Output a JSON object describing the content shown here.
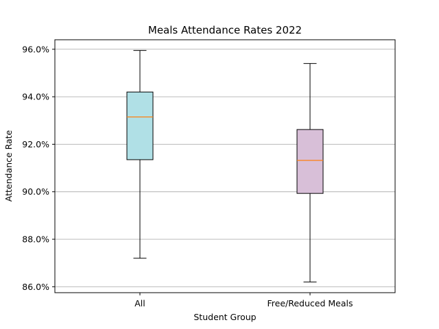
{
  "chart_data": {
    "type": "box",
    "title": "Meals Attendance Rates 2022",
    "xlabel": "Student Group",
    "ylabel": "Attendance Rate",
    "ylim": [
      85.75,
      96.4
    ],
    "yticks": [
      86,
      88,
      90,
      92,
      94,
      96
    ],
    "ytick_labels": [
      "86.0%",
      "88.0%",
      "90.0%",
      "92.0%",
      "94.0%",
      "96.0%"
    ],
    "grid": "horizontal",
    "categories": [
      "All",
      "Free/Reduced Meals"
    ],
    "boxes": [
      {
        "category": "All",
        "whisker_low": 87.2,
        "q1": 91.35,
        "median": 93.15,
        "q3": 94.2,
        "whisker_high": 95.95,
        "color": "#b0e0e6"
      },
      {
        "category": "Free/Reduced Meals",
        "whisker_low": 86.2,
        "q1": 89.93,
        "median": 91.32,
        "q3": 92.62,
        "whisker_high": 95.4,
        "color": "#d8bfd8"
      }
    ],
    "median_color": "#ff7f0e",
    "grid_color": "#b0b0b0"
  }
}
